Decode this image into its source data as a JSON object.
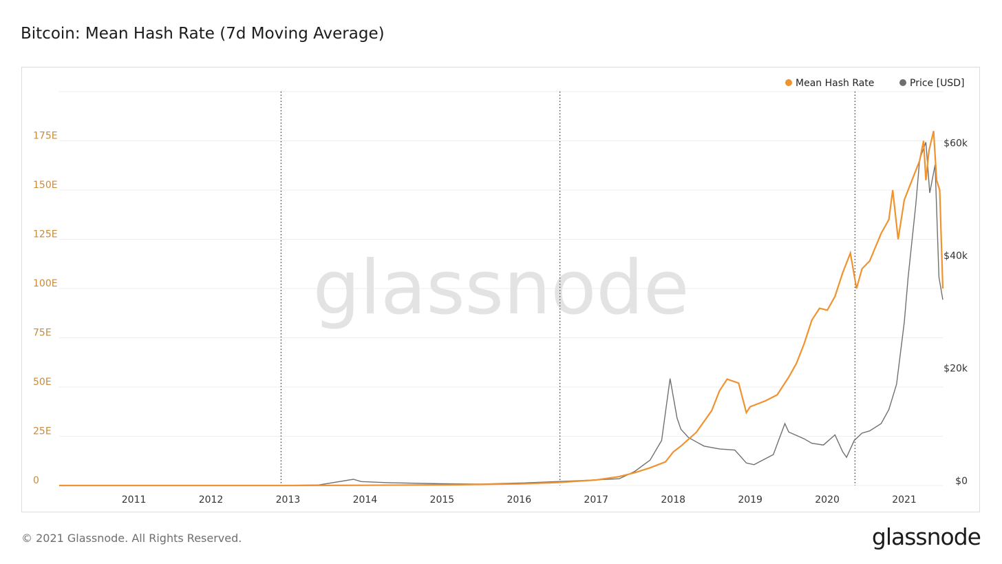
{
  "title": "Bitcoin: Mean Hash Rate (7d Moving Average)",
  "footer": "© 2021 Glassnode. All Rights Reserved.",
  "logo": "glassnode",
  "watermark": "glassnode",
  "colors": {
    "hash_rate": "#f0922e",
    "price": "#6f6f6f",
    "left_axis": "#c98a3a",
    "grid": "#eeeeee"
  },
  "chart_data": {
    "type": "line",
    "title": "Bitcoin: Mean Hash Rate (7d Moving Average)",
    "x_ticks": [
      "2011",
      "2012",
      "2013",
      "2014",
      "2015",
      "2016",
      "2017",
      "2018",
      "2019",
      "2020",
      "2021"
    ],
    "x_range": [
      2010.03,
      2021.5
    ],
    "left_axis": {
      "ticks": [
        "0",
        "25E",
        "50E",
        "75E",
        "100E",
        "125E",
        "150E",
        "175E"
      ],
      "values": [
        0,
        25,
        50,
        75,
        100,
        125,
        150,
        175
      ],
      "range": [
        0,
        200
      ]
    },
    "right_axis": {
      "ticks": [
        "$0",
        "$20k",
        "$40k",
        "$60k"
      ],
      "values": [
        0,
        20000,
        40000,
        60000
      ],
      "range": [
        0,
        70000
      ]
    },
    "halving_lines": [
      2012.91,
      2016.53,
      2020.36
    ],
    "legend": {
      "position": "top-right",
      "items": [
        "Mean Hash Rate",
        "Price [USD]"
      ]
    },
    "series": [
      {
        "name": "Mean Hash Rate",
        "axis": "left",
        "x": [
          2010.03,
          2012.0,
          2013.0,
          2014.0,
          2015.0,
          2016.0,
          2016.5,
          2017.0,
          2017.3,
          2017.5,
          2017.7,
          2017.9,
          2018.0,
          2018.1,
          2018.3,
          2018.5,
          2018.6,
          2018.7,
          2018.85,
          2018.95,
          2019.0,
          2019.2,
          2019.35,
          2019.5,
          2019.6,
          2019.7,
          2019.8,
          2019.9,
          2020.0,
          2020.1,
          2020.2,
          2020.3,
          2020.38,
          2020.45,
          2020.55,
          2020.7,
          2020.8,
          2020.85,
          2020.92,
          2021.0,
          2021.1,
          2021.2,
          2021.25,
          2021.28,
          2021.32,
          2021.38,
          2021.42,
          2021.46,
          2021.5
        ],
        "y": [
          0,
          0,
          0,
          0.1,
          0.3,
          0.8,
          1.5,
          2.8,
          4.5,
          6.5,
          9,
          12,
          17,
          20,
          27,
          38,
          48,
          54,
          52,
          37,
          40,
          43,
          46,
          55,
          62,
          72,
          84,
          90,
          89,
          96,
          108,
          118,
          100,
          110,
          114,
          128,
          135,
          150,
          125,
          145,
          155,
          165,
          175,
          155,
          170,
          180,
          155,
          150,
          100
        ]
      },
      {
        "name": "Price [USD]",
        "axis": "right",
        "x": [
          2010.03,
          2013.0,
          2013.4,
          2013.85,
          2013.95,
          2014.3,
          2015.0,
          2015.5,
          2016.0,
          2016.5,
          2017.0,
          2017.3,
          2017.5,
          2017.7,
          2017.85,
          2017.96,
          2018.05,
          2018.1,
          2018.2,
          2018.4,
          2018.6,
          2018.8,
          2018.95,
          2019.05,
          2019.3,
          2019.45,
          2019.5,
          2019.7,
          2019.8,
          2019.95,
          2020.1,
          2020.2,
          2020.25,
          2020.35,
          2020.45,
          2020.55,
          2020.7,
          2020.8,
          2020.9,
          2021.0,
          2021.05,
          2021.15,
          2021.2,
          2021.28,
          2021.33,
          2021.4,
          2021.45,
          2021.5
        ],
        "y": [
          0,
          20,
          100,
          1100,
          700,
          500,
          300,
          250,
          430,
          700,
          1000,
          1200,
          2500,
          4500,
          8000,
          19000,
          12000,
          10000,
          8500,
          7000,
          6500,
          6300,
          4000,
          3700,
          5500,
          11000,
          9500,
          8300,
          7500,
          7200,
          9000,
          6000,
          5000,
          8000,
          9300,
          9700,
          11000,
          13500,
          18000,
          29000,
          37000,
          50000,
          58000,
          61000,
          52000,
          57000,
          37000,
          33000
        ]
      }
    ]
  }
}
